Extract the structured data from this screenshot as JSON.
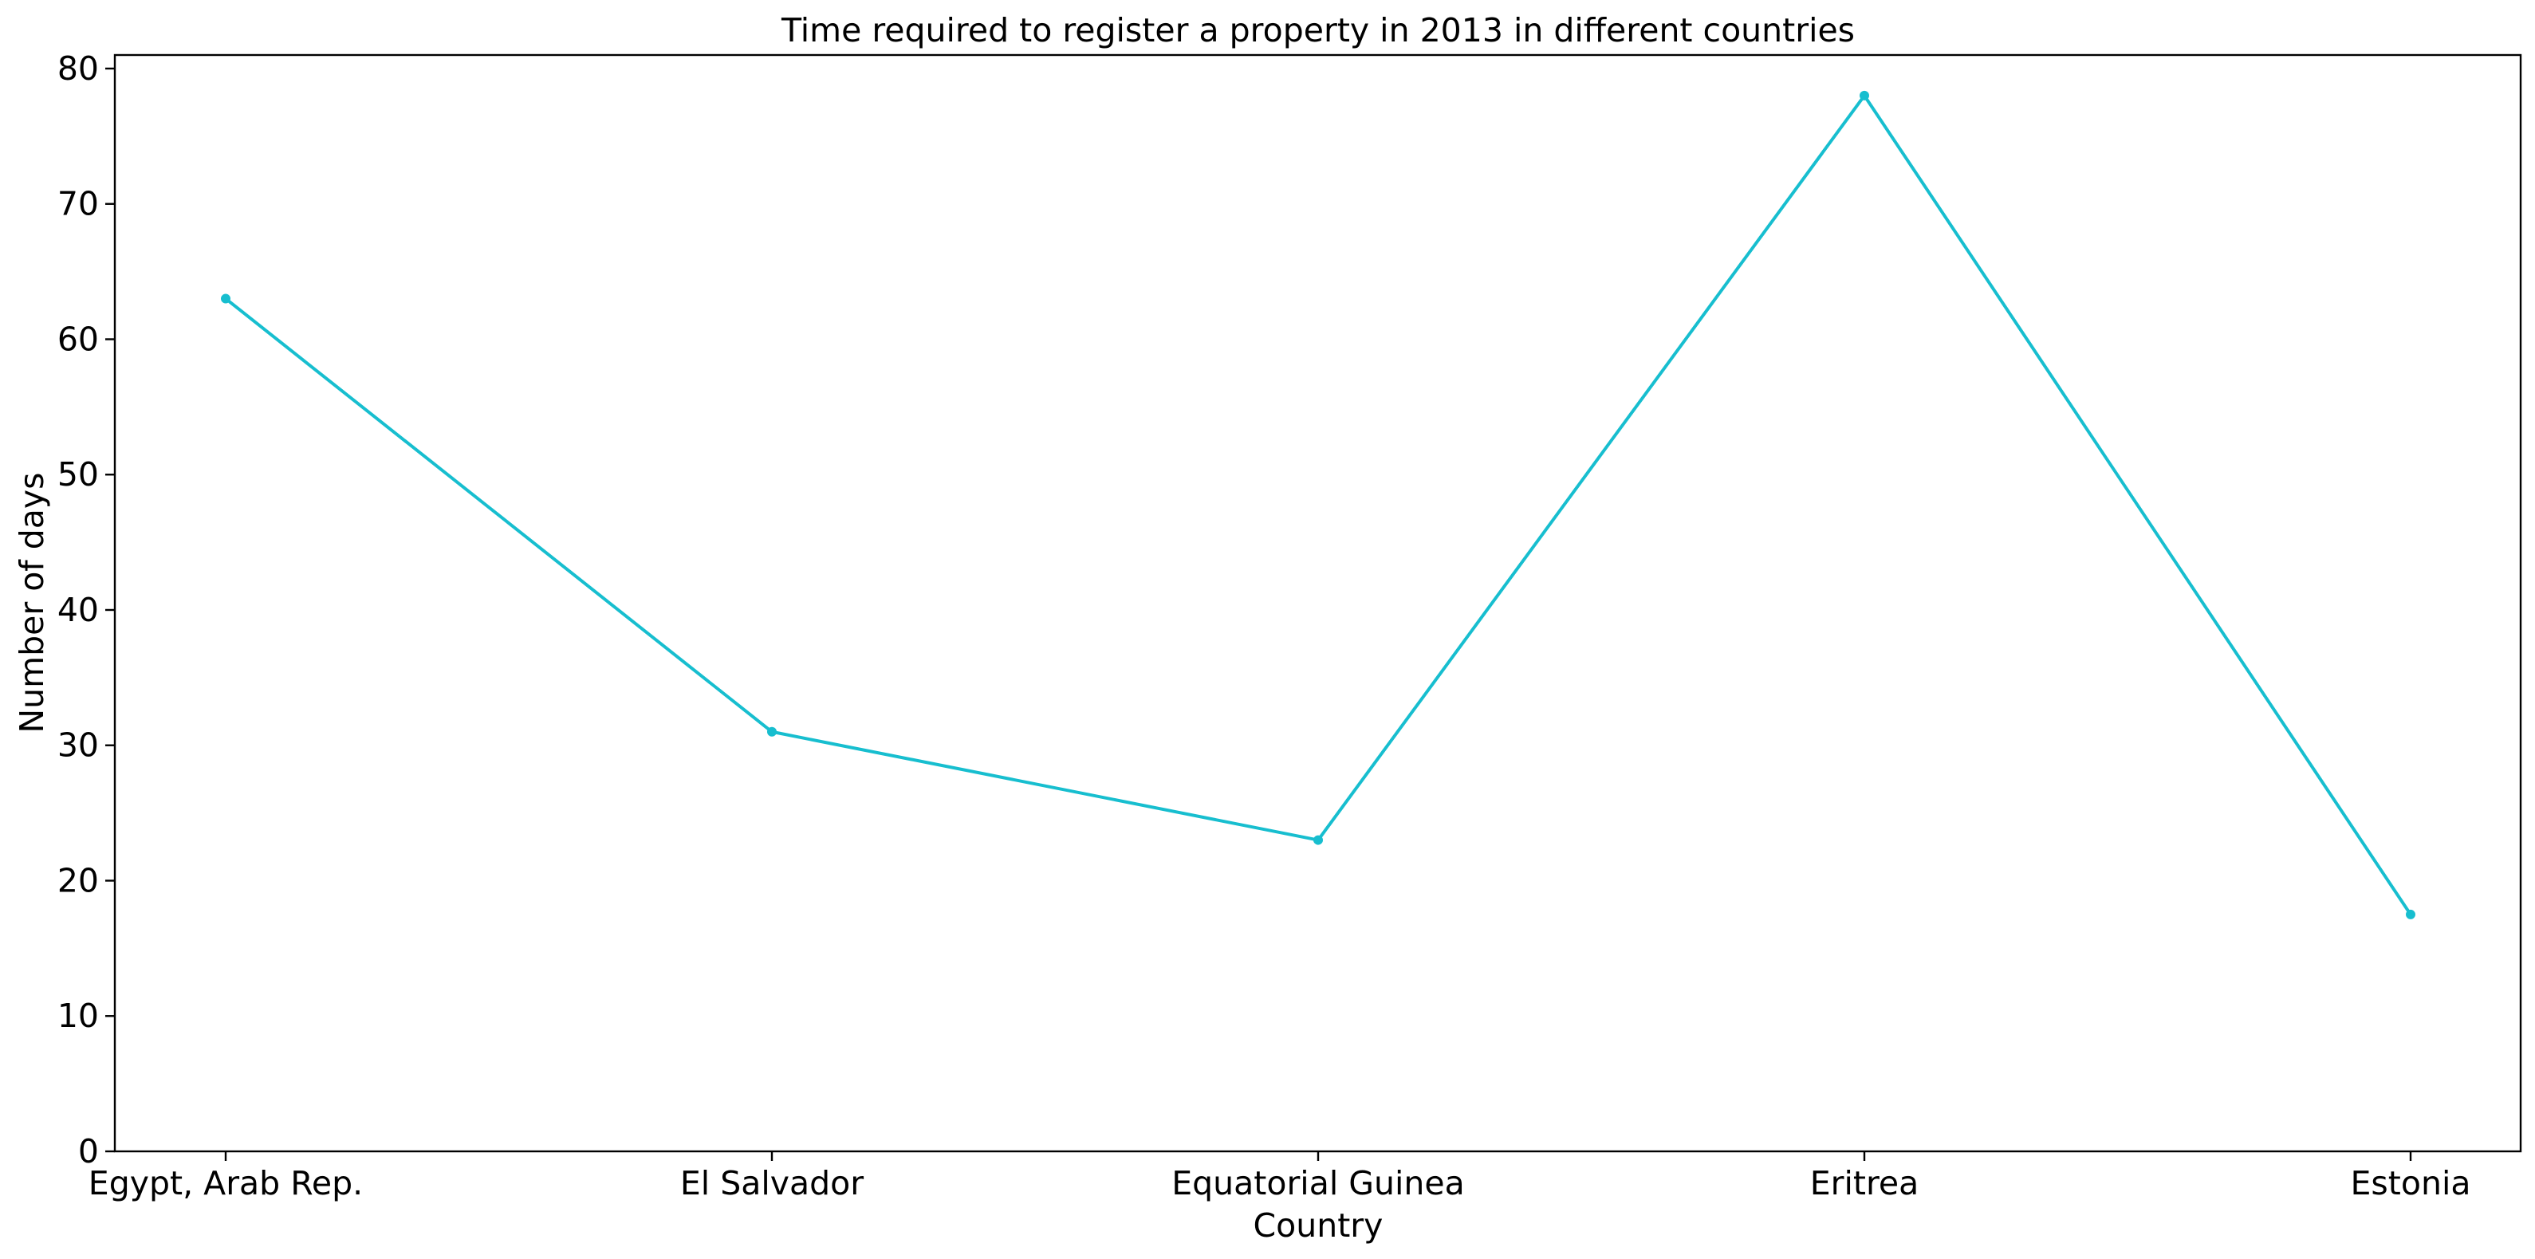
{
  "chart_data": {
    "type": "line",
    "title": "Time required to register a property in 2013 in different countries",
    "xlabel": "Country",
    "ylabel": "Number of days",
    "categories": [
      "Egypt, Arab Rep.",
      "El Salvador",
      "Equatorial Guinea",
      "Eritrea",
      "Estonia"
    ],
    "series": [
      {
        "name": "Number of days",
        "values": [
          63,
          31,
          23,
          78,
          17.5
        ],
        "color": "#17becf"
      }
    ],
    "ylim": [
      0,
      81
    ],
    "yticks": [
      0,
      10,
      20,
      30,
      40,
      50,
      60,
      70,
      80
    ],
    "grid": false,
    "legend": "none"
  }
}
